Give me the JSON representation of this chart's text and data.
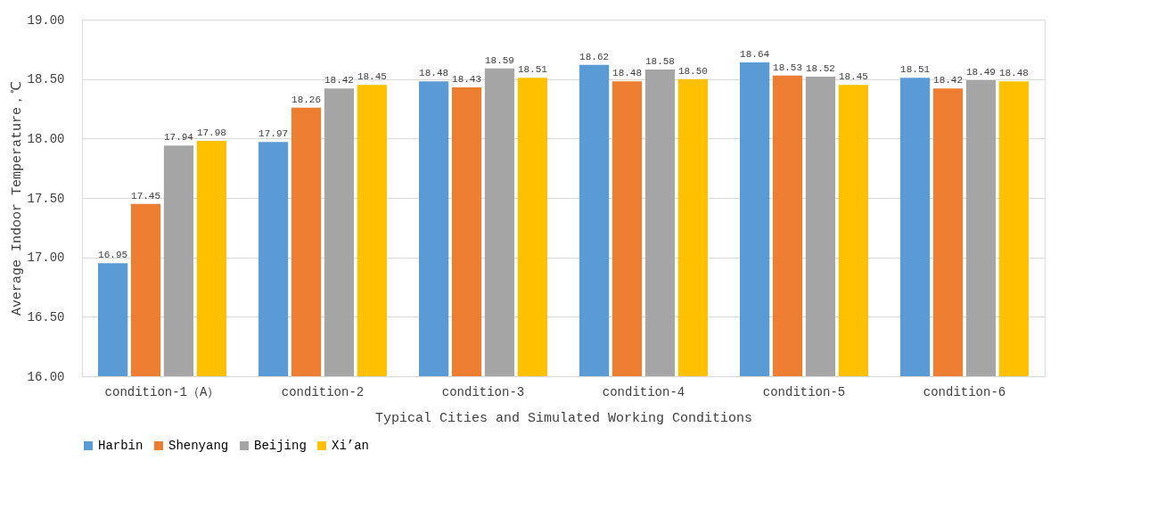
{
  "chart_data": {
    "type": "bar",
    "xlabel": "Typical Cities and Simulated Working Conditions",
    "ylabel": "Average Indoor Temperature，℃",
    "categories": [
      "condition-1（A）",
      "condition-2",
      "condition-3",
      "condition-4",
      "condition-5",
      "condition-6"
    ],
    "series": [
      {
        "name": "Harbin",
        "color": "#5b9bd5",
        "values": [
          16.95,
          17.97,
          18.48,
          18.62,
          18.64,
          18.51
        ],
        "value_labels": [
          "16.95",
          "17.97",
          "18.48",
          "18.62",
          "18.64",
          "18.51"
        ]
      },
      {
        "name": "Shenyang",
        "color": "#ed7d31",
        "values": [
          17.45,
          18.26,
          18.43,
          18.48,
          18.53,
          18.42
        ],
        "value_labels": [
          "17.45",
          "18.26",
          "18.43",
          "18.48",
          "18.53",
          "18.42"
        ]
      },
      {
        "name": "Beijing",
        "color": "#a5a5a5",
        "values": [
          17.94,
          18.42,
          18.59,
          18.58,
          18.52,
          18.49
        ],
        "value_labels": [
          "17.94",
          "18.42",
          "18.59",
          "18.58",
          "18.52",
          "18.49"
        ]
      },
      {
        "name": "Xi’an",
        "color": "#ffc000",
        "values": [
          17.98,
          18.45,
          18.51,
          18.5,
          18.45,
          18.48
        ],
        "value_labels": [
          "17.98",
          "18.45",
          "18.51",
          "18.50",
          "18.45",
          "18.48"
        ]
      }
    ],
    "ylim": [
      16.0,
      19.0
    ],
    "yticks": [
      {
        "value": 16,
        "label": "16.00"
      },
      {
        "value": 16.5,
        "label": "16.50"
      },
      {
        "value": 17,
        "label": "17.00"
      },
      {
        "value": 17.5,
        "label": "17.50"
      },
      {
        "value": 18,
        "label": "18.00"
      },
      {
        "value": 18.5,
        "label": "18.50"
      },
      {
        "value": 19,
        "label": "19.00"
      }
    ],
    "grid": "y",
    "legend": "bottom"
  }
}
